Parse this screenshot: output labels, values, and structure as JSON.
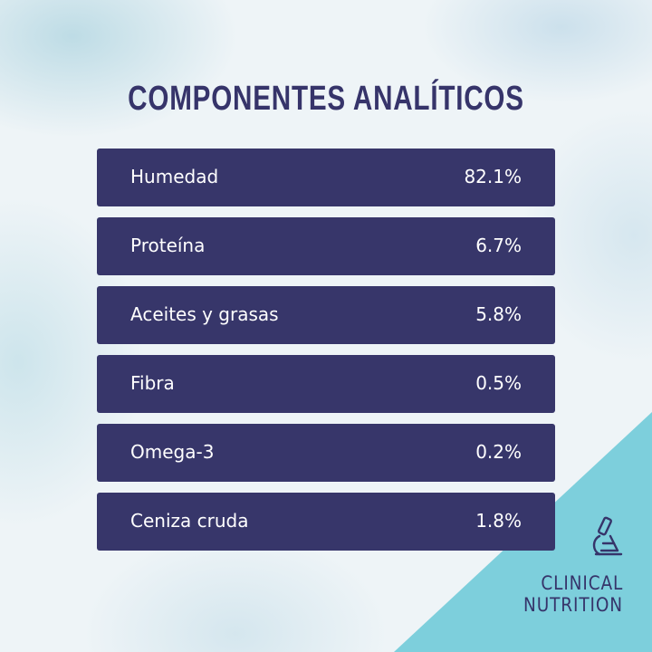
{
  "header": {
    "title": "COMPONENTES ANALÍTICOS"
  },
  "table": {
    "rows": [
      [
        "Humedad",
        "82.1%"
      ],
      [
        "Proteína",
        "6.7%"
      ],
      [
        "Aceites y grasas",
        "5.8%"
      ],
      [
        "Fibra",
        "0.5%"
      ],
      [
        "Omega-3",
        "0.2%"
      ],
      [
        "Ceniza cruda",
        "1.8%"
      ]
    ]
  },
  "logo": {
    "lines": [
      "CLINICAL",
      "NUTRITION"
    ]
  }
}
